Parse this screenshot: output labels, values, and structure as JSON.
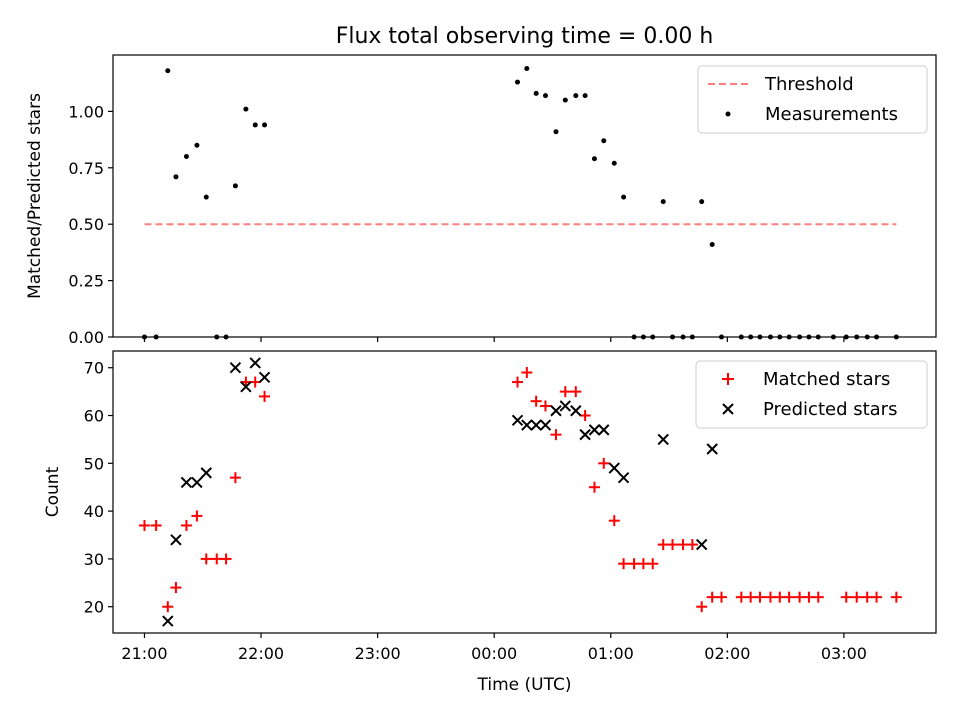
{
  "title": "Flux total observing time = 0.00 h",
  "colors": {
    "threshold": "#ff7f7f",
    "measurement": "#000000",
    "matched": "#ff0000",
    "predicted": "#000000"
  },
  "chart_data": [
    {
      "type": "scatter",
      "title": "Flux total observing time = 0.00 h",
      "ylabel": "Matched/Predicted stars",
      "xlabel": "",
      "xlim": [
        20.73,
        27.79
      ],
      "ylim": [
        0,
        1.25
      ],
      "yticks": [
        0.0,
        0.25,
        0.5,
        0.75,
        1.0
      ],
      "ytick_labels": [
        "0.00",
        "0.25",
        "0.50",
        "0.75",
        "1.00"
      ],
      "legend": {
        "position": "top-right",
        "entries": [
          "Threshold",
          "Measurements"
        ]
      },
      "threshold": {
        "name": "Threshold",
        "y": 0.5,
        "x_range": [
          21.0,
          27.45
        ]
      },
      "series": [
        {
          "name": "Measurements",
          "points": [
            [
              21.0,
              0.0
            ],
            [
              21.1,
              0.0
            ],
            [
              21.2,
              1.18
            ],
            [
              21.27,
              0.71
            ],
            [
              21.36,
              0.8
            ],
            [
              21.45,
              0.85
            ],
            [
              21.53,
              0.62
            ],
            [
              21.62,
              0.0
            ],
            [
              21.7,
              0.0
            ],
            [
              21.78,
              0.67
            ],
            [
              21.87,
              1.01
            ],
            [
              21.95,
              0.94
            ],
            [
              22.03,
              0.94
            ],
            [
              24.2,
              1.13
            ],
            [
              24.28,
              1.19
            ],
            [
              24.36,
              1.08
            ],
            [
              24.44,
              1.07
            ],
            [
              24.53,
              0.91
            ],
            [
              24.61,
              1.05
            ],
            [
              24.7,
              1.07
            ],
            [
              24.78,
              1.07
            ],
            [
              24.86,
              0.79
            ],
            [
              24.94,
              0.87
            ],
            [
              25.03,
              0.77
            ],
            [
              25.11,
              0.62
            ],
            [
              25.2,
              0.0
            ],
            [
              25.28,
              0.0
            ],
            [
              25.36,
              0.0
            ],
            [
              25.45,
              0.6
            ],
            [
              25.53,
              0.0
            ],
            [
              25.62,
              0.0
            ],
            [
              25.7,
              0.0
            ],
            [
              25.78,
              0.6
            ],
            [
              25.87,
              0.41
            ],
            [
              25.95,
              0.0
            ],
            [
              26.12,
              0.0
            ],
            [
              26.2,
              0.0
            ],
            [
              26.28,
              0.0
            ],
            [
              26.37,
              0.0
            ],
            [
              26.45,
              0.0
            ],
            [
              26.53,
              0.0
            ],
            [
              26.62,
              0.0
            ],
            [
              26.7,
              0.0
            ],
            [
              26.78,
              0.0
            ],
            [
              26.91,
              0.0
            ],
            [
              27.02,
              0.0
            ],
            [
              27.11,
              0.0
            ],
            [
              27.2,
              0.0
            ],
            [
              27.28,
              0.0
            ],
            [
              27.45,
              0.0
            ]
          ]
        }
      ]
    },
    {
      "type": "scatter",
      "title": "",
      "ylabel": "Count",
      "xlabel": "Time (UTC)",
      "xlim": [
        20.73,
        27.79
      ],
      "ylim": [
        14.5,
        73.5
      ],
      "yticks": [
        20,
        30,
        40,
        50,
        60,
        70
      ],
      "ytick_labels": [
        "20",
        "30",
        "40",
        "50",
        "60",
        "70"
      ],
      "xticks": [
        21,
        22,
        23,
        24,
        25,
        26,
        27
      ],
      "xtick_labels": [
        "21:00",
        "22:00",
        "23:00",
        "00:00",
        "01:00",
        "02:00",
        "03:00"
      ],
      "legend": {
        "position": "top-right",
        "entries": [
          "Matched stars",
          "Predicted stars"
        ]
      },
      "series": [
        {
          "name": "Matched stars",
          "points": [
            [
              21.0,
              37
            ],
            [
              21.1,
              37
            ],
            [
              21.2,
              20
            ],
            [
              21.27,
              24
            ],
            [
              21.36,
              37
            ],
            [
              21.45,
              39
            ],
            [
              21.53,
              30
            ],
            [
              21.62,
              30
            ],
            [
              21.7,
              30
            ],
            [
              21.78,
              47
            ],
            [
              21.87,
              67
            ],
            [
              21.95,
              67
            ],
            [
              22.03,
              64
            ],
            [
              24.2,
              67
            ],
            [
              24.28,
              69
            ],
            [
              24.36,
              63
            ],
            [
              24.44,
              62
            ],
            [
              24.53,
              56
            ],
            [
              24.61,
              65
            ],
            [
              24.7,
              65
            ],
            [
              24.78,
              60
            ],
            [
              24.86,
              45
            ],
            [
              24.94,
              50
            ],
            [
              25.03,
              38
            ],
            [
              25.11,
              29
            ],
            [
              25.2,
              29
            ],
            [
              25.28,
              29
            ],
            [
              25.36,
              29
            ],
            [
              25.45,
              33
            ],
            [
              25.53,
              33
            ],
            [
              25.62,
              33
            ],
            [
              25.7,
              33
            ],
            [
              25.78,
              20
            ],
            [
              25.87,
              22
            ],
            [
              25.95,
              22
            ],
            [
              26.12,
              22
            ],
            [
              26.2,
              22
            ],
            [
              26.28,
              22
            ],
            [
              26.37,
              22
            ],
            [
              26.45,
              22
            ],
            [
              26.53,
              22
            ],
            [
              26.62,
              22
            ],
            [
              26.7,
              22
            ],
            [
              26.78,
              22
            ],
            [
              27.02,
              22
            ],
            [
              27.11,
              22
            ],
            [
              27.2,
              22
            ],
            [
              27.28,
              22
            ],
            [
              27.45,
              22
            ]
          ]
        },
        {
          "name": "Predicted stars",
          "points": [
            [
              21.2,
              17
            ],
            [
              21.27,
              34
            ],
            [
              21.36,
              46
            ],
            [
              21.45,
              46
            ],
            [
              21.53,
              48
            ],
            [
              21.78,
              70
            ],
            [
              21.87,
              66
            ],
            [
              21.95,
              71
            ],
            [
              22.03,
              68
            ],
            [
              24.2,
              59
            ],
            [
              24.28,
              58
            ],
            [
              24.36,
              58
            ],
            [
              24.44,
              58
            ],
            [
              24.53,
              61
            ],
            [
              24.61,
              62
            ],
            [
              24.7,
              61
            ],
            [
              24.78,
              56
            ],
            [
              24.86,
              57
            ],
            [
              24.94,
              57
            ],
            [
              25.03,
              49
            ],
            [
              25.11,
              47
            ],
            [
              25.45,
              55
            ],
            [
              25.78,
              33
            ],
            [
              25.87,
              53
            ]
          ]
        }
      ]
    }
  ]
}
